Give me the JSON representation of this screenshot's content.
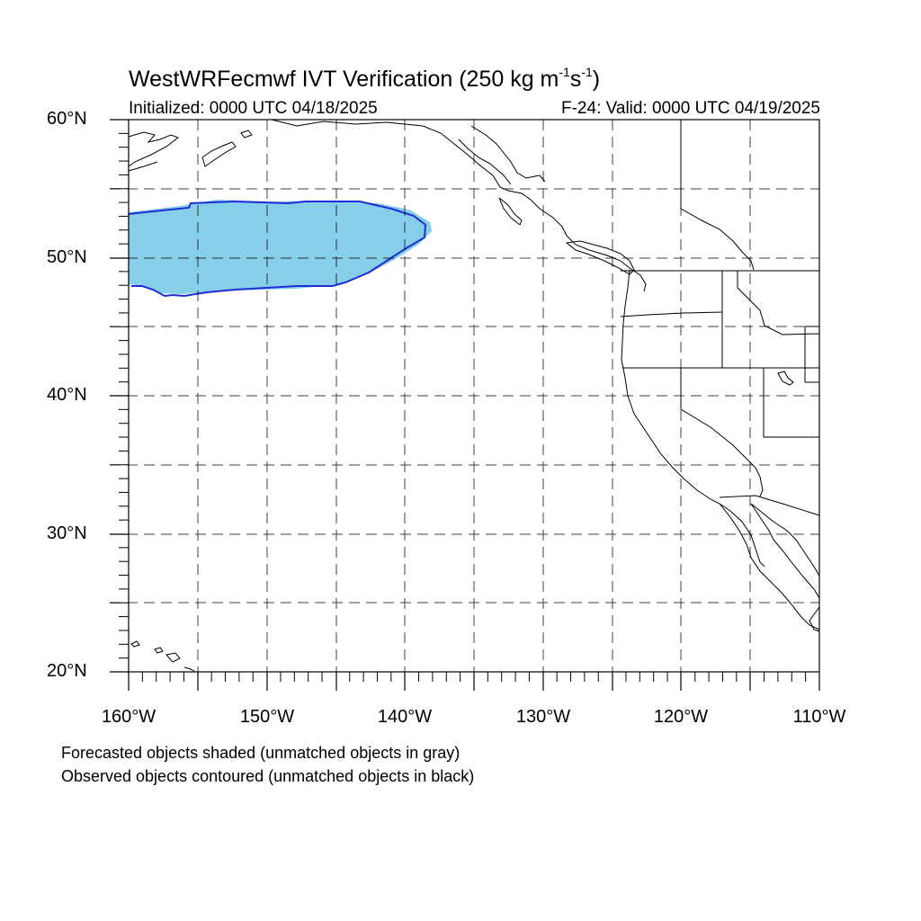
{
  "map": {
    "title_main": "WestWRFecmwf IVT Verification (250 kg m",
    "title_sup1": "-1",
    "title_mid": "s",
    "title_sup2": "-1",
    "title_end": ")",
    "initialized": "Initialized: 0000 UTC 04/18/2025",
    "valid": "F-24: Valid: 0000 UTC 04/19/2025",
    "lat_labels": [
      "60°N",
      "50°N",
      "40°N",
      "30°N",
      "20°N"
    ],
    "lon_labels": [
      "160°W",
      "150°W",
      "140°W",
      "130°W",
      "120°W",
      "110°W"
    ],
    "note_forecast": "Forecasted objects shaded (unmatched objects in gray)",
    "note_observed": "Observed objects contoured (unmatched objects in black)",
    "extent": {
      "lon_min": -160,
      "lon_max": -110,
      "lat_min": 20,
      "lat_max": 60
    },
    "colors": {
      "forecast_fill": "#87ceeb",
      "observed_contour": "#1f2fd6"
    }
  }
}
